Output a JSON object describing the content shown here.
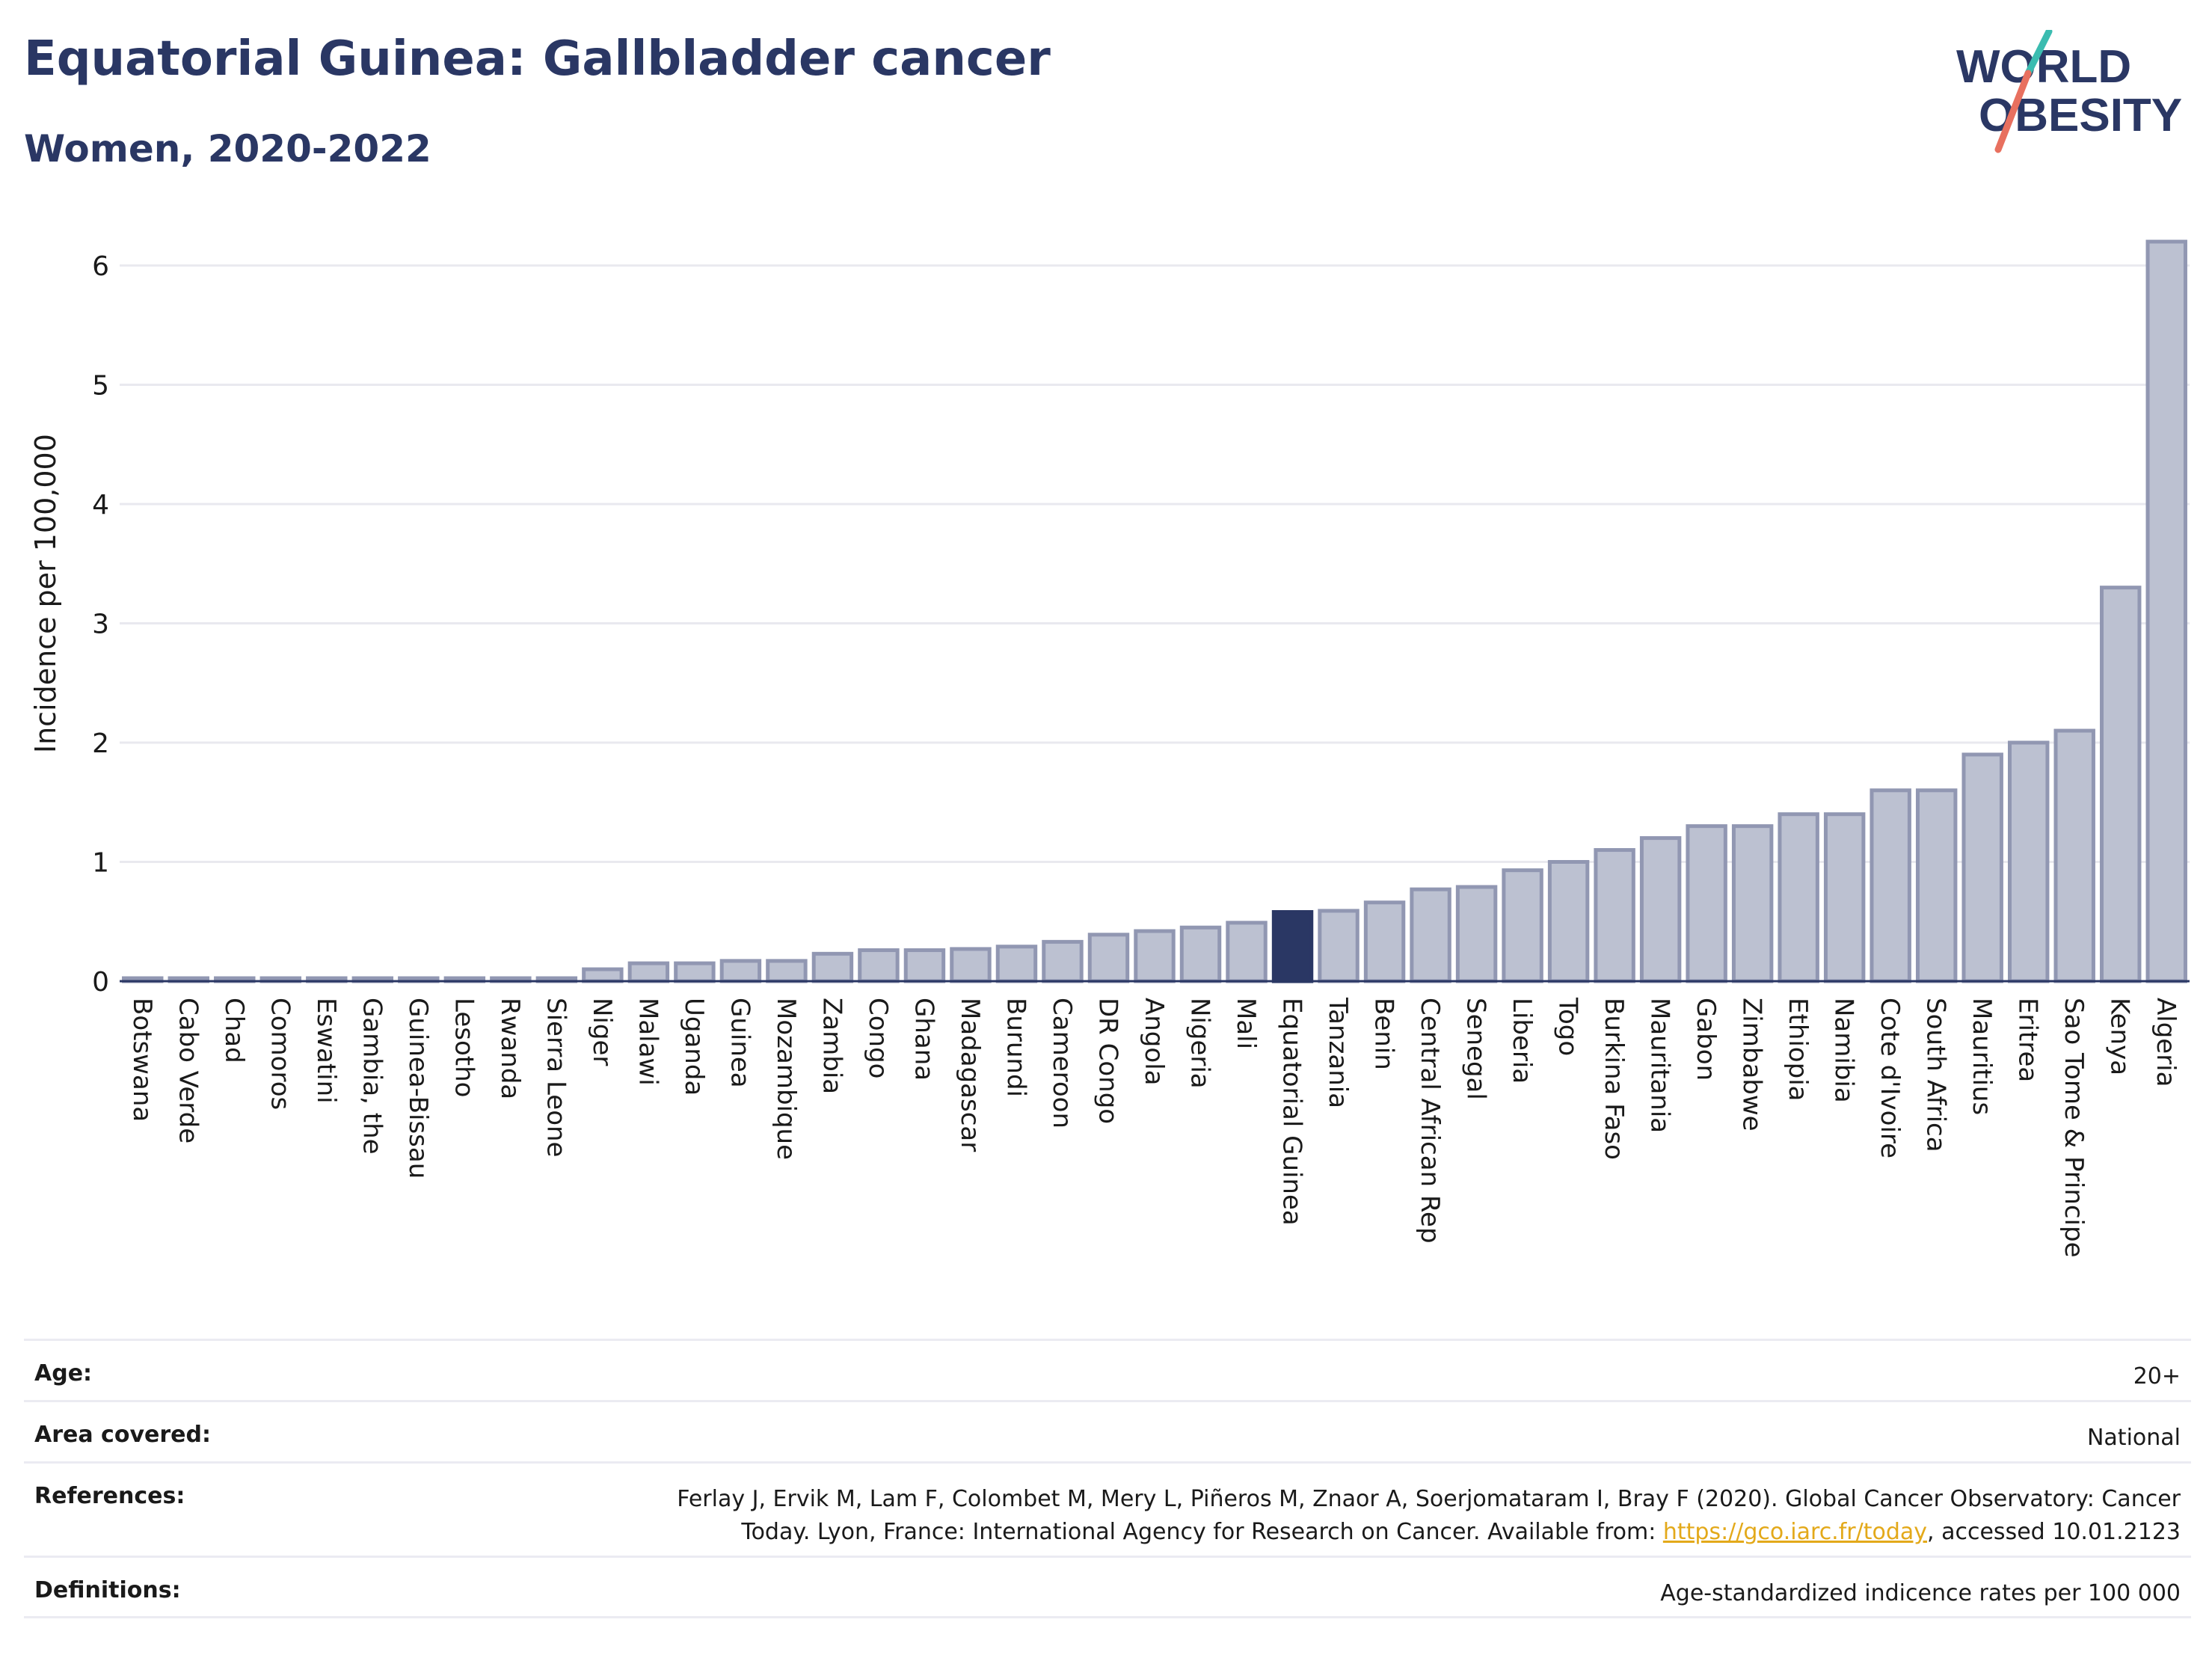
{
  "header": {
    "title": "Equatorial Guinea: Gallbladder cancer",
    "subtitle": "Women, 2020-2022"
  },
  "logo": {
    "line1": "WORLD",
    "line2": "OBESITY"
  },
  "colors": {
    "bar": "#bcc1d1",
    "bar_border": "#9197b2",
    "highlight": "#2a3764",
    "title": "#2a3764",
    "link": "#e3a91a"
  },
  "chart_data": {
    "type": "bar",
    "ylabel": "Incidence per 100,000",
    "ylim": [
      0,
      6.5
    ],
    "yticks": [
      0,
      1,
      2,
      3,
      4,
      5,
      6
    ],
    "grid": true,
    "highlight": "Equatorial Guinea",
    "categories": [
      "Botswana",
      "Cabo Verde",
      "Chad",
      "Comoros",
      "Eswatini",
      "Gambia, the",
      "Guinea-Bissau",
      "Lesotho",
      "Rwanda",
      "Sierra Leone",
      "Niger",
      "Malawi",
      "Uganda",
      "Guinea",
      "Mozambique",
      "Zambia",
      "Congo",
      "Ghana",
      "Madagascar",
      "Burundi",
      "Cameroon",
      "DR Congo",
      "Angola",
      "Nigeria",
      "Mali",
      "Equatorial Guinea",
      "Tanzania",
      "Benin",
      "Central African Rep",
      "Senegal",
      "Liberia",
      "Togo",
      "Burkina Faso",
      "Mauritania",
      "Gabon",
      "Zimbabwe",
      "Ethiopia",
      "Namibia",
      "Cote d'Ivoire",
      "South Africa",
      "Mauritius",
      "Eritrea",
      "Sao Tome & Principe",
      "Kenya",
      "Algeria"
    ],
    "values": [
      0.02,
      0.02,
      0.02,
      0.02,
      0.02,
      0.02,
      0.02,
      0.02,
      0.02,
      0.02,
      0.1,
      0.15,
      0.15,
      0.17,
      0.17,
      0.23,
      0.26,
      0.26,
      0.27,
      0.29,
      0.33,
      0.39,
      0.42,
      0.45,
      0.49,
      0.58,
      0.59,
      0.66,
      0.77,
      0.79,
      0.93,
      1.0,
      1.1,
      1.2,
      1.3,
      1.3,
      1.4,
      1.4,
      1.6,
      1.6,
      1.9,
      2.0,
      2.1,
      3.3,
      6.2
    ]
  },
  "meta": {
    "age_label": "Age:",
    "age_value": "20+",
    "area_label": "Area covered:",
    "area_value": "National",
    "references_label": "References:",
    "references_line1": "Ferlay J, Ervik M, Lam F, Colombet M, Mery L, Piñeros M, Znaor A, Soerjomataram I, Bray F (2020). Global Cancer Observatory: Cancer",
    "references_line2_pre": "Today. Lyon, France: International Agency for Research on Cancer. Available from: ",
    "references_link": "https://gco.iarc.fr/today",
    "references_line2_post": ", accessed 10.01.2123",
    "definitions_label": "Definitions:",
    "definitions_value": "Age-standardized indicence rates per 100 000"
  }
}
